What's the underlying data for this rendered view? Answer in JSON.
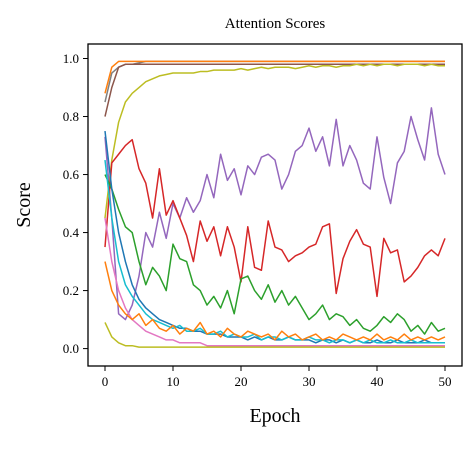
{
  "chart_data": {
    "type": "line",
    "title": "Attention Scores",
    "x_label": "Epoch",
    "y_label": "Score",
    "x": [
      0,
      1,
      2,
      3,
      4,
      5,
      6,
      7,
      8,
      9,
      10,
      11,
      12,
      13,
      14,
      15,
      16,
      17,
      18,
      19,
      20,
      21,
      22,
      23,
      24,
      25,
      26,
      27,
      28,
      29,
      30,
      31,
      32,
      33,
      34,
      35,
      36,
      37,
      38,
      39,
      40,
      41,
      42,
      43,
      44,
      45,
      46,
      47,
      48,
      49,
      50
    ],
    "xlim": [
      -2.5,
      52.5
    ],
    "xticks": [
      0,
      10,
      20,
      30,
      40,
      50
    ],
    "ylim": [
      -0.06,
      1.05
    ],
    "yticks": [
      {
        "value": 0,
        "label": "0.0"
      },
      0.2,
      0.4,
      0.6,
      0.8,
      {
        "value": 1,
        "label": "1.0"
      }
    ],
    "series": [
      {
        "color": "#7f7f7f",
        "values": [
          0.85,
          0.95,
          0.97,
          0.98,
          0.98,
          0.985,
          0.99,
          0.99,
          0.99,
          0.99,
          0.99,
          0.99,
          0.99,
          0.99,
          0.99,
          0.99,
          0.99,
          0.99,
          0.99,
          0.99,
          0.99,
          0.99,
          0.99,
          0.99,
          0.99,
          0.99,
          0.99,
          0.99,
          0.99,
          0.99,
          0.99,
          0.99,
          0.99,
          0.99,
          0.99,
          0.99,
          0.99,
          0.99,
          0.99,
          0.99,
          0.99,
          0.99,
          0.99,
          0.99,
          0.99,
          0.99,
          0.99,
          0.99,
          0.99,
          0.99,
          0.99
        ]
      },
      {
        "color": "#ff7f0e",
        "values": [
          0.88,
          0.97,
          0.99,
          0.99,
          0.99,
          0.99,
          0.99,
          0.99,
          0.99,
          0.99,
          0.99,
          0.99,
          0.99,
          0.99,
          0.99,
          0.99,
          0.99,
          0.99,
          0.99,
          0.99,
          0.99,
          0.99,
          0.99,
          0.99,
          0.99,
          0.99,
          0.99,
          0.99,
          0.99,
          0.99,
          0.99,
          0.99,
          0.99,
          0.99,
          0.99,
          0.99,
          0.99,
          0.99,
          0.99,
          0.99,
          0.99,
          0.99,
          0.99,
          0.99,
          0.99,
          0.99,
          0.99,
          0.99,
          0.99,
          0.99,
          0.99
        ]
      },
      {
        "color": "#8c564b",
        "values": [
          0.8,
          0.9,
          0.97,
          0.98,
          0.98,
          0.98,
          0.98,
          0.98,
          0.98,
          0.98,
          0.98,
          0.98,
          0.98,
          0.98,
          0.98,
          0.98,
          0.98,
          0.98,
          0.98,
          0.98,
          0.98,
          0.98,
          0.98,
          0.98,
          0.98,
          0.98,
          0.98,
          0.98,
          0.98,
          0.98,
          0.98,
          0.98,
          0.98,
          0.98,
          0.98,
          0.98,
          0.98,
          0.98,
          0.98,
          0.98,
          0.98,
          0.98,
          0.98,
          0.98,
          0.98,
          0.98,
          0.98,
          0.98,
          0.98,
          0.98,
          0.98
        ]
      },
      {
        "color": "#bcbd22",
        "values": [
          0.45,
          0.65,
          0.78,
          0.85,
          0.88,
          0.9,
          0.92,
          0.93,
          0.94,
          0.945,
          0.95,
          0.95,
          0.95,
          0.95,
          0.955,
          0.955,
          0.96,
          0.96,
          0.96,
          0.96,
          0.965,
          0.96,
          0.965,
          0.97,
          0.965,
          0.97,
          0.97,
          0.97,
          0.965,
          0.97,
          0.975,
          0.97,
          0.975,
          0.975,
          0.97,
          0.975,
          0.975,
          0.98,
          0.975,
          0.98,
          0.975,
          0.98,
          0.98,
          0.975,
          0.98,
          0.98,
          0.98,
          0.975,
          0.98,
          0.975,
          0.975
        ]
      },
      {
        "color": "#9467bd",
        "values": [
          0.73,
          0.45,
          0.12,
          0.1,
          0.15,
          0.25,
          0.4,
          0.35,
          0.47,
          0.38,
          0.5,
          0.45,
          0.52,
          0.47,
          0.51,
          0.6,
          0.52,
          0.67,
          0.58,
          0.62,
          0.53,
          0.63,
          0.6,
          0.66,
          0.67,
          0.65,
          0.55,
          0.6,
          0.68,
          0.7,
          0.76,
          0.68,
          0.73,
          0.63,
          0.79,
          0.63,
          0.7,
          0.65,
          0.57,
          0.55,
          0.73,
          0.59,
          0.5,
          0.64,
          0.68,
          0.8,
          0.72,
          0.65,
          0.83,
          0.67,
          0.6
        ]
      },
      {
        "color": "#d62728",
        "values": [
          0.35,
          0.64,
          0.67,
          0.7,
          0.72,
          0.62,
          0.57,
          0.45,
          0.62,
          0.46,
          0.51,
          0.45,
          0.39,
          0.3,
          0.44,
          0.37,
          0.42,
          0.32,
          0.42,
          0.35,
          0.23,
          0.42,
          0.28,
          0.27,
          0.44,
          0.35,
          0.34,
          0.3,
          0.32,
          0.33,
          0.35,
          0.36,
          0.42,
          0.43,
          0.19,
          0.31,
          0.37,
          0.41,
          0.36,
          0.35,
          0.18,
          0.38,
          0.33,
          0.34,
          0.23,
          0.25,
          0.28,
          0.32,
          0.34,
          0.32,
          0.38
        ]
      },
      {
        "color": "#2ca02c",
        "values": [
          0.6,
          0.55,
          0.48,
          0.42,
          0.4,
          0.3,
          0.22,
          0.28,
          0.25,
          0.2,
          0.36,
          0.31,
          0.3,
          0.22,
          0.2,
          0.15,
          0.18,
          0.14,
          0.2,
          0.12,
          0.24,
          0.25,
          0.2,
          0.17,
          0.22,
          0.16,
          0.2,
          0.15,
          0.18,
          0.14,
          0.1,
          0.12,
          0.15,
          0.1,
          0.12,
          0.11,
          0.08,
          0.1,
          0.07,
          0.06,
          0.08,
          0.11,
          0.09,
          0.12,
          0.1,
          0.06,
          0.08,
          0.05,
          0.09,
          0.06,
          0.07
        ]
      },
      {
        "color": "#1f77b4",
        "values": [
          0.75,
          0.55,
          0.4,
          0.3,
          0.22,
          0.17,
          0.14,
          0.12,
          0.1,
          0.09,
          0.08,
          0.07,
          0.07,
          0.06,
          0.06,
          0.05,
          0.05,
          0.05,
          0.04,
          0.04,
          0.04,
          0.03,
          0.04,
          0.03,
          0.04,
          0.03,
          0.03,
          0.04,
          0.03,
          0.03,
          0.03,
          0.02,
          0.03,
          0.03,
          0.02,
          0.03,
          0.02,
          0.03,
          0.02,
          0.02,
          0.03,
          0.02,
          0.02,
          0.03,
          0.02,
          0.02,
          0.02,
          0.03,
          0.02,
          0.02,
          0.02
        ]
      },
      {
        "color": "#17becf",
        "values": [
          0.65,
          0.45,
          0.3,
          0.22,
          0.18,
          0.15,
          0.12,
          0.1,
          0.09,
          0.08,
          0.07,
          0.08,
          0.06,
          0.06,
          0.07,
          0.05,
          0.05,
          0.06,
          0.04,
          0.05,
          0.04,
          0.04,
          0.05,
          0.03,
          0.04,
          0.04,
          0.03,
          0.04,
          0.03,
          0.03,
          0.04,
          0.03,
          0.03,
          0.02,
          0.03,
          0.03,
          0.02,
          0.03,
          0.02,
          0.03,
          0.02,
          0.02,
          0.03,
          0.02,
          0.02,
          0.03,
          0.02,
          0.02,
          0.02,
          0.02,
          0.02
        ]
      },
      {
        "color": "#e377c2",
        "values": [
          0.45,
          0.3,
          0.2,
          0.14,
          0.1,
          0.08,
          0.06,
          0.05,
          0.04,
          0.03,
          0.03,
          0.02,
          0.02,
          0.02,
          0.02,
          0.01,
          0.01,
          0.01,
          0.01,
          0.01,
          0.01,
          0.01,
          0.01,
          0.01,
          0.01,
          0.01,
          0.01,
          0.01,
          0.01,
          0.01,
          0.01,
          0.01,
          0.01,
          0.01,
          0.01,
          0.01,
          0.01,
          0.01,
          0.01,
          0.01,
          0.01,
          0.01,
          0.01,
          0.01,
          0.01,
          0.01,
          0.01,
          0.01,
          0.01,
          0.01,
          0.01
        ]
      },
      {
        "color": "#ff7f0e",
        "values": [
          0.3,
          0.2,
          0.15,
          0.12,
          0.1,
          0.12,
          0.08,
          0.1,
          0.07,
          0.06,
          0.08,
          0.05,
          0.07,
          0.06,
          0.09,
          0.05,
          0.06,
          0.04,
          0.07,
          0.05,
          0.04,
          0.06,
          0.05,
          0.04,
          0.05,
          0.03,
          0.06,
          0.04,
          0.05,
          0.03,
          0.04,
          0.05,
          0.03,
          0.04,
          0.03,
          0.05,
          0.04,
          0.03,
          0.04,
          0.03,
          0.05,
          0.03,
          0.04,
          0.03,
          0.05,
          0.03,
          0.04,
          0.03,
          0.04,
          0.03,
          0.04
        ]
      },
      {
        "color": "#bcbd22",
        "values": [
          0.09,
          0.04,
          0.02,
          0.01,
          0.01,
          0.005,
          0.005,
          0.005,
          0.005,
          0.005,
          0.005,
          0.005,
          0.005,
          0.005,
          0.005,
          0.005,
          0.005,
          0.005,
          0.005,
          0.005,
          0.005,
          0.005,
          0.005,
          0.005,
          0.005,
          0.005,
          0.005,
          0.005,
          0.005,
          0.005,
          0.005,
          0.005,
          0.005,
          0.005,
          0.005,
          0.005,
          0.005,
          0.005,
          0.005,
          0.005,
          0.005,
          0.005,
          0.005,
          0.005,
          0.005,
          0.005,
          0.005,
          0.005,
          0.005,
          0.005,
          0.005
        ]
      }
    ]
  }
}
